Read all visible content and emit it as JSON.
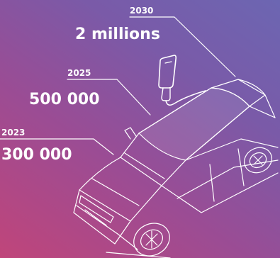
{
  "milestones": [
    {
      "year": "2030",
      "value": "2 millions"
    },
    {
      "year": "2025",
      "value": "500 000"
    },
    {
      "year": "2023",
      "value": "300 000"
    }
  ],
  "icons": {
    "vehicle": "electric-car-icon",
    "charger": "charging-plug-icon"
  },
  "colors": {
    "gradient_start": "#c0457a",
    "gradient_mid": "#9b4c94",
    "gradient_end": "#6c66b2",
    "line": "#ffffff"
  }
}
